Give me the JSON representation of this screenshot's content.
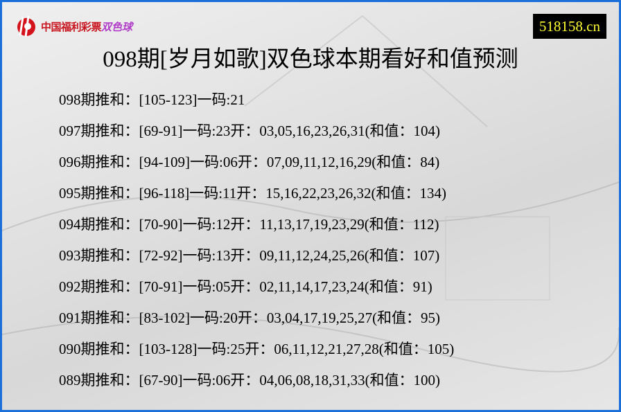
{
  "brand": {
    "logo_text": "中国福利彩票",
    "logo_sub": "双色球",
    "site": "518158.cn",
    "border_color": "#1a6fd8"
  },
  "title": "098期[岁月如歌]双色球本期看好和值预测",
  "rows": [
    "098期推和：[105-123]一码:21",
    "097期推和：[69-91]一码:23开：03,05,16,23,26,31(和值：104)",
    "096期推和：[94-109]一码:06开：07,09,11,12,16,29(和值：84)",
    "095期推和：[96-118]一码:11开：15,16,22,23,26,32(和值：134)",
    "094期推和：[70-90]一码:12开：11,13,17,19,23,29(和值：112)",
    "093期推和：[72-92]一码:13开：09,11,12,24,25,26(和值：107)",
    "092期推和：[70-91]一码:05开：02,11,14,17,23,24(和值：91)",
    "091期推和：[83-102]一码:20开：03,04,17,19,25,27(和值：95)",
    "090期推和：[103-128]一码:25开：06,11,12,21,27,28(和值：105)",
    "089期推和：[67-90]一码:06开：04,06,08,18,31,33(和值：100)"
  ]
}
